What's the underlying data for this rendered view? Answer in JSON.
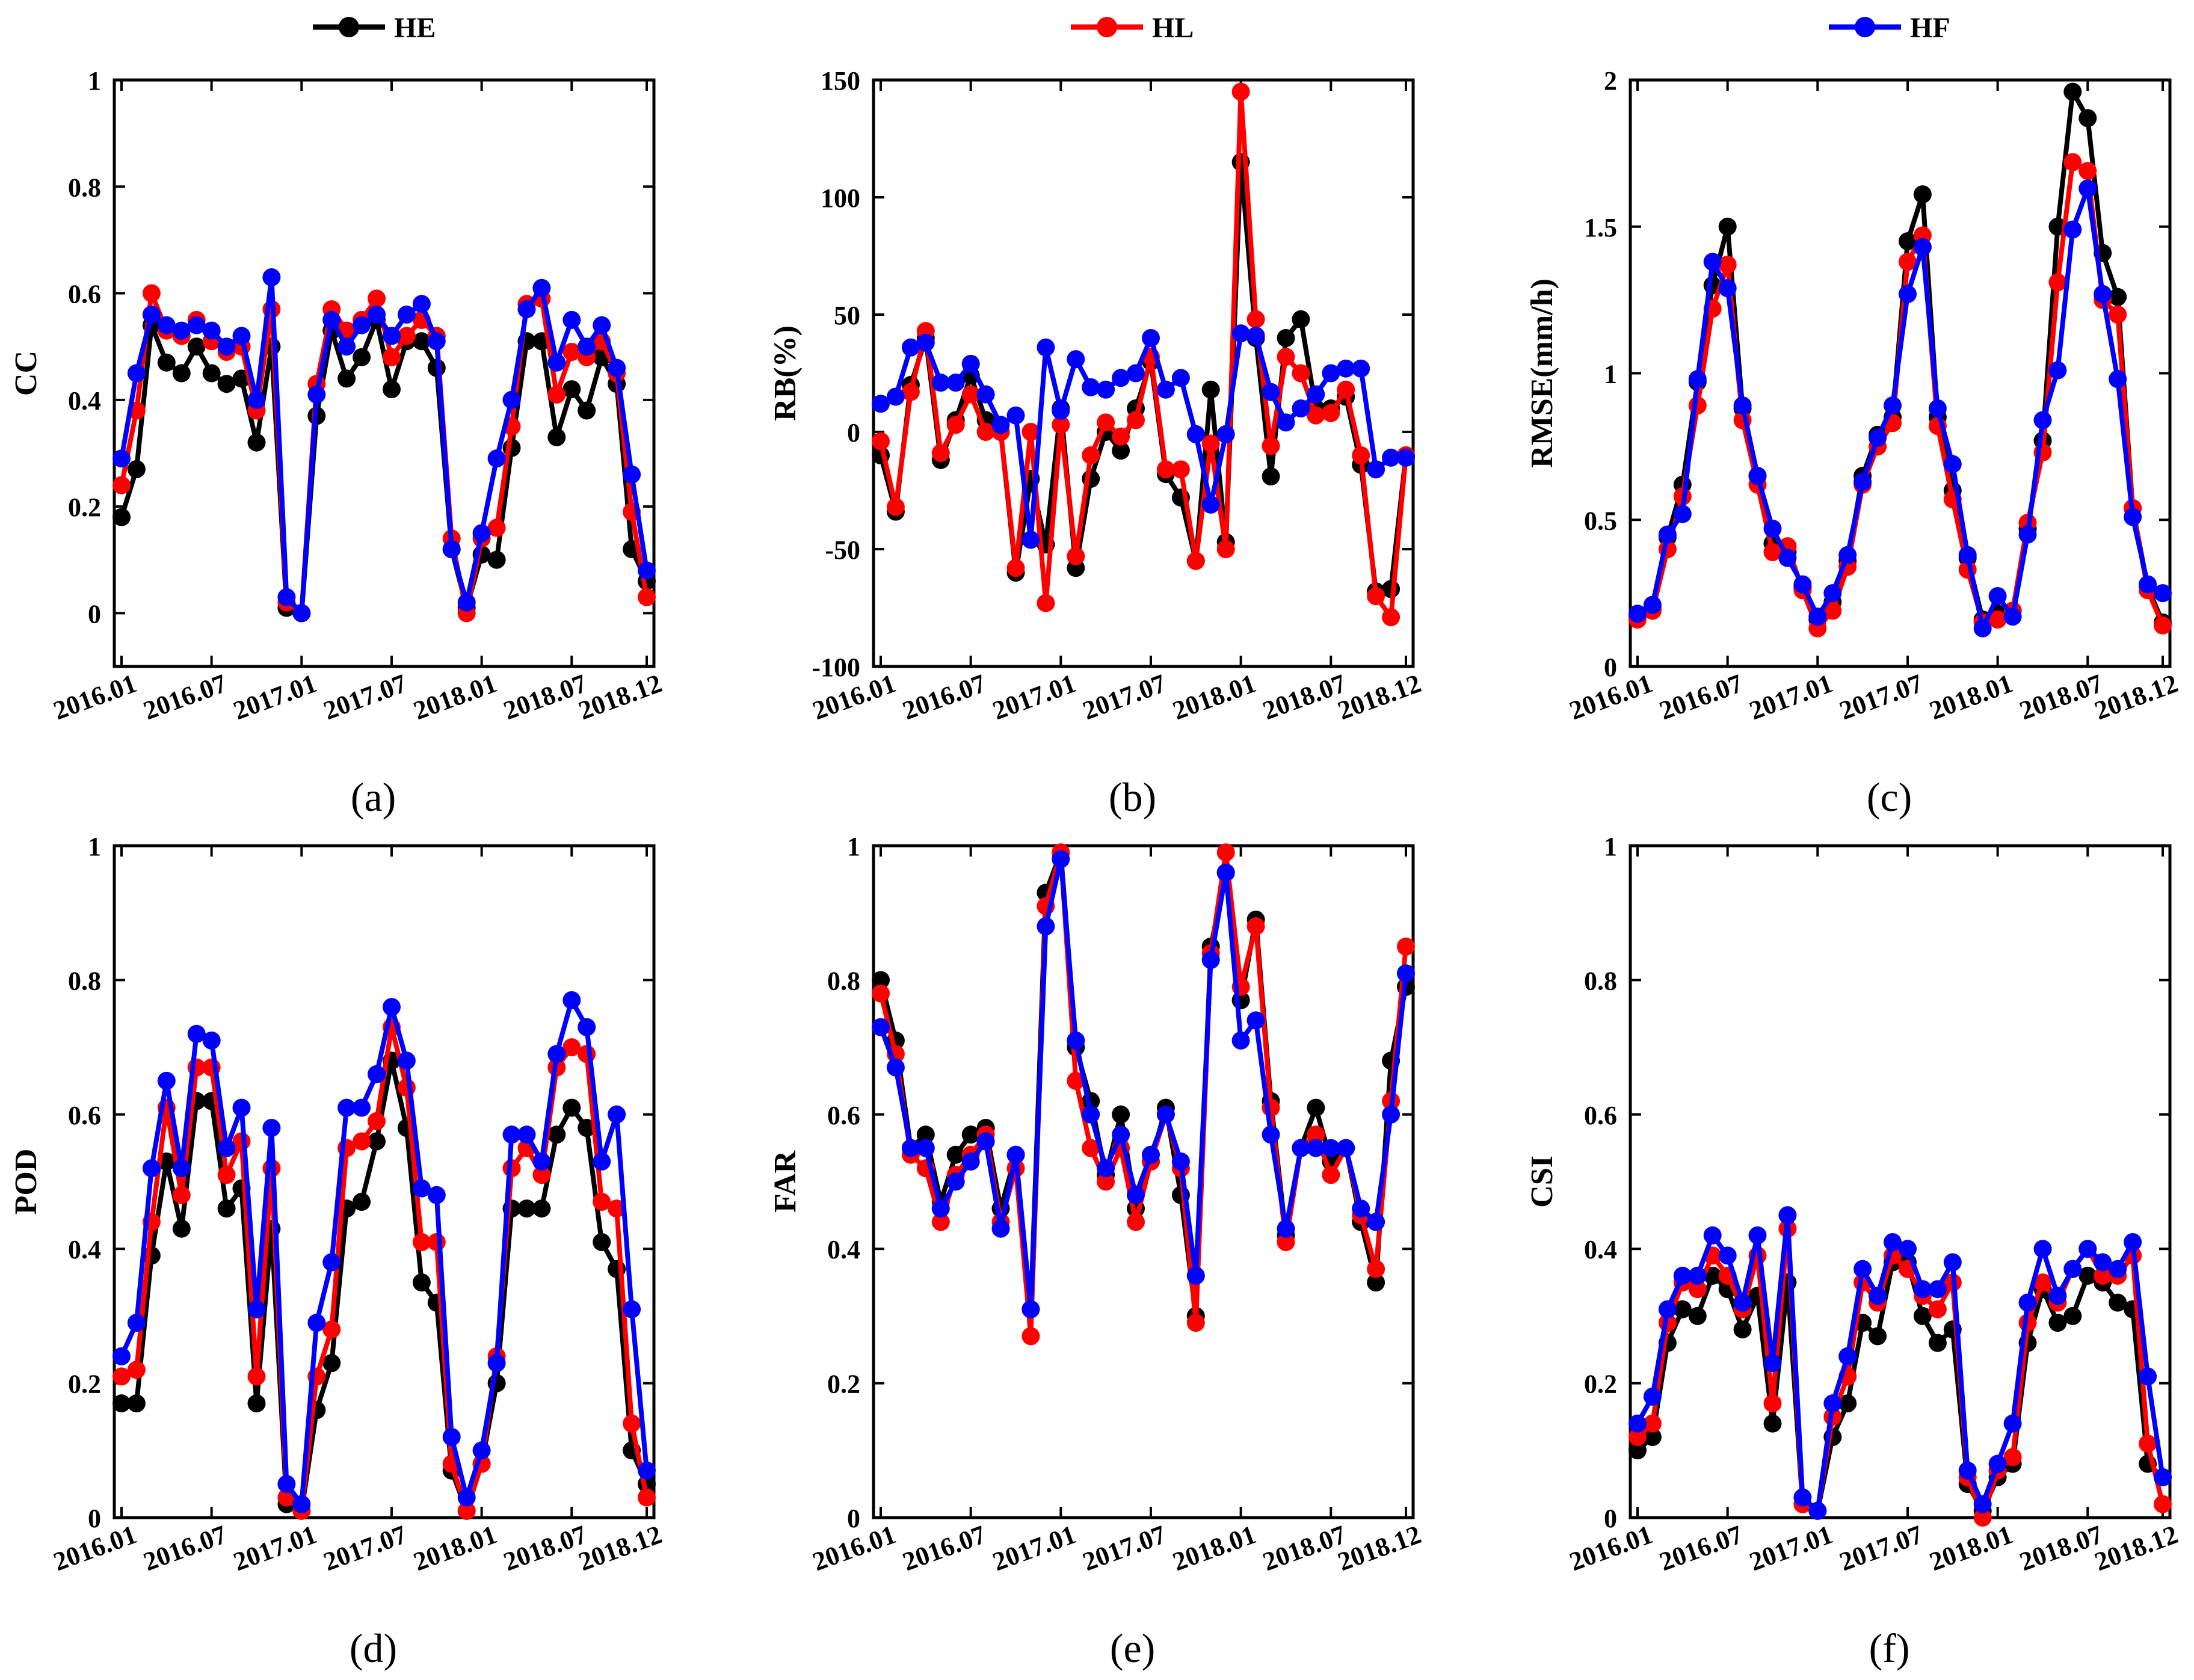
{
  "legend": [
    {
      "name": "HE",
      "color": "#000000"
    },
    {
      "name": "HL",
      "color": "#ff0000"
    },
    {
      "name": "HF",
      "color": "#0000ff"
    }
  ],
  "chart_data": [
    {
      "type": "line",
      "panel": "(a)",
      "ylabel": "CC",
      "ylim": [
        -0.1,
        1.0
      ],
      "yticks": [
        "0",
        "0.2",
        "0.4",
        "0.6",
        "0.8",
        "1"
      ],
      "ytick_values": [
        0,
        0.2,
        0.4,
        0.6,
        0.8,
        1
      ],
      "xticks": [
        "2016.01",
        "2016.07",
        "2017.01",
        "2017.07",
        "2018.01",
        "2018.07",
        "2018.12"
      ],
      "xtick_index": [
        0,
        6,
        12,
        18,
        24,
        30,
        35
      ],
      "series": [
        {
          "name": "HE",
          "values": [
            0.18,
            0.27,
            0.54,
            0.47,
            0.45,
            0.5,
            0.45,
            0.43,
            0.44,
            0.32,
            0.5,
            0.01,
            0.0,
            0.37,
            0.53,
            0.44,
            0.48,
            0.55,
            0.42,
            0.51,
            0.51,
            0.46,
            0.12,
            0.01,
            0.11,
            0.1,
            0.31,
            0.51,
            0.51,
            0.33,
            0.42,
            0.38,
            0.48,
            0.43,
            0.12,
            0.06
          ]
        },
        {
          "name": "HL",
          "values": [
            0.24,
            0.38,
            0.6,
            0.53,
            0.52,
            0.55,
            0.51,
            0.49,
            0.5,
            0.38,
            0.57,
            0.02,
            0.0,
            0.43,
            0.57,
            0.53,
            0.55,
            0.59,
            0.48,
            0.52,
            0.55,
            0.52,
            0.14,
            0.0,
            0.14,
            0.16,
            0.35,
            0.58,
            0.59,
            0.41,
            0.49,
            0.48,
            0.51,
            0.45,
            0.19,
            0.03
          ]
        },
        {
          "name": "HF",
          "values": [
            0.29,
            0.45,
            0.56,
            0.54,
            0.53,
            0.54,
            0.53,
            0.5,
            0.52,
            0.4,
            0.63,
            0.03,
            0.0,
            0.41,
            0.55,
            0.5,
            0.54,
            0.56,
            0.52,
            0.56,
            0.58,
            0.51,
            0.12,
            0.02,
            0.15,
            0.29,
            0.4,
            0.57,
            0.61,
            0.47,
            0.55,
            0.5,
            0.54,
            0.46,
            0.26,
            0.08
          ]
        }
      ]
    },
    {
      "type": "line",
      "panel": "(b)",
      "ylabel": "RB(%)",
      "ylim": [
        -100,
        150
      ],
      "yticks": [
        "-100",
        "-50",
        "0",
        "50",
        "100",
        "150"
      ],
      "ytick_values": [
        -100,
        -50,
        0,
        50,
        100,
        150
      ],
      "xticks": [
        "2016.01",
        "2016.07",
        "2017.01",
        "2017.07",
        "2018.01",
        "2018.07",
        "2018.12"
      ],
      "xtick_index": [
        0,
        6,
        12,
        18,
        24,
        30,
        35
      ],
      "series": [
        {
          "name": "HE",
          "values": [
            -10,
            -34,
            20,
            40,
            -12,
            5,
            24,
            5,
            0,
            -60,
            -20,
            -48,
            10,
            -58,
            -20,
            0,
            -8,
            10,
            30,
            -18,
            -28,
            -55,
            18,
            -47,
            115,
            40,
            -19,
            40,
            48,
            10,
            10,
            15,
            -14,
            -68,
            -67,
            -10
          ]
        },
        {
          "name": "HL",
          "values": [
            -4,
            -32,
            17,
            43,
            -9,
            3,
            16,
            0,
            0,
            -58,
            0,
            -73,
            3,
            -53,
            -10,
            4,
            -2,
            5,
            32,
            -16,
            -16,
            -55,
            -5,
            -50,
            145,
            48,
            -6,
            32,
            25,
            7,
            8,
            18,
            -10,
            -70,
            -79,
            -10
          ]
        },
        {
          "name": "HF",
          "values": [
            12,
            15,
            36,
            38,
            21,
            21,
            29,
            16,
            3,
            7,
            -46,
            36,
            9,
            31,
            19,
            18,
            23,
            25,
            40,
            18,
            23,
            -1,
            -31,
            -1,
            42,
            41,
            17,
            4,
            10,
            16,
            25,
            27,
            27,
            -16,
            -11,
            -11
          ]
        }
      ]
    },
    {
      "type": "line",
      "panel": "(c)",
      "ylabel": "RMSE(mm/h)",
      "ylim": [
        0,
        2
      ],
      "yticks": [
        "0",
        "0.5",
        "1",
        "1.5",
        "2"
      ],
      "ytick_values": [
        0,
        0.5,
        1,
        1.5,
        2
      ],
      "xticks": [
        "2016.01",
        "2016.07",
        "2017.01",
        "2017.07",
        "2018.01",
        "2018.07",
        "2018.12"
      ],
      "xtick_index": [
        0,
        6,
        12,
        18,
        24,
        30,
        35
      ],
      "series": [
        {
          "name": "HE",
          "values": [
            0.17,
            0.2,
            0.44,
            0.62,
            0.97,
            1.3,
            1.5,
            0.88,
            0.65,
            0.42,
            0.39,
            0.27,
            0.16,
            0.22,
            0.36,
            0.65,
            0.79,
            0.85,
            1.45,
            1.61,
            0.85,
            0.6,
            0.37,
            0.16,
            0.18,
            0.19,
            0.47,
            0.77,
            1.5,
            1.96,
            1.87,
            1.41,
            1.26,
            0.54,
            0.27,
            0.15
          ]
        },
        {
          "name": "HL",
          "values": [
            0.16,
            0.19,
            0.4,
            0.58,
            0.89,
            1.22,
            1.37,
            0.84,
            0.62,
            0.39,
            0.41,
            0.26,
            0.13,
            0.19,
            0.34,
            0.62,
            0.75,
            0.83,
            1.38,
            1.47,
            0.82,
            0.57,
            0.33,
            0.15,
            0.16,
            0.19,
            0.49,
            0.73,
            1.31,
            1.72,
            1.69,
            1.25,
            1.2,
            0.54,
            0.26,
            0.14
          ]
        },
        {
          "name": "HF",
          "values": [
            0.18,
            0.21,
            0.45,
            0.52,
            0.98,
            1.38,
            1.29,
            0.89,
            0.65,
            0.47,
            0.37,
            0.28,
            0.17,
            0.25,
            0.38,
            0.63,
            0.78,
            0.89,
            1.27,
            1.43,
            0.88,
            0.69,
            0.38,
            0.13,
            0.24,
            0.17,
            0.45,
            0.84,
            1.01,
            1.49,
            1.63,
            1.27,
            0.98,
            0.51,
            0.28,
            0.25
          ]
        }
      ]
    },
    {
      "type": "line",
      "panel": "(d)",
      "ylabel": "POD",
      "ylim": [
        0,
        1
      ],
      "yticks": [
        "0",
        "0.2",
        "0.4",
        "0.6",
        "0.8",
        "1"
      ],
      "ytick_values": [
        0,
        0.2,
        0.4,
        0.6,
        0.8,
        1
      ],
      "xticks": [
        "2016.01",
        "2016.07",
        "2017.01",
        "2017.07",
        "2018.01",
        "2018.07",
        "2018.12"
      ],
      "xtick_index": [
        0,
        6,
        12,
        18,
        24,
        30,
        35
      ],
      "series": [
        {
          "name": "HE",
          "values": [
            0.17,
            0.17,
            0.39,
            0.53,
            0.43,
            0.62,
            0.62,
            0.46,
            0.49,
            0.17,
            0.43,
            0.02,
            0.01,
            0.16,
            0.23,
            0.46,
            0.47,
            0.56,
            0.68,
            0.58,
            0.35,
            0.32,
            0.07,
            0.01,
            0.08,
            0.2,
            0.46,
            0.46,
            0.46,
            0.57,
            0.61,
            0.58,
            0.41,
            0.37,
            0.1,
            0.05
          ]
        },
        {
          "name": "HL",
          "values": [
            0.21,
            0.22,
            0.44,
            0.61,
            0.48,
            0.67,
            0.67,
            0.51,
            0.56,
            0.21,
            0.52,
            0.03,
            0.01,
            0.21,
            0.28,
            0.55,
            0.56,
            0.59,
            0.73,
            0.64,
            0.41,
            0.41,
            0.08,
            0.01,
            0.08,
            0.24,
            0.52,
            0.55,
            0.51,
            0.67,
            0.7,
            0.69,
            0.47,
            0.46,
            0.14,
            0.03
          ]
        },
        {
          "name": "HF",
          "values": [
            0.24,
            0.29,
            0.52,
            0.65,
            0.52,
            0.72,
            0.71,
            0.55,
            0.61,
            0.31,
            0.58,
            0.05,
            0.02,
            0.29,
            0.38,
            0.61,
            0.61,
            0.66,
            0.76,
            0.68,
            0.49,
            0.48,
            0.12,
            0.03,
            0.1,
            0.23,
            0.57,
            0.57,
            0.53,
            0.69,
            0.77,
            0.73,
            0.53,
            0.6,
            0.31,
            0.07
          ]
        }
      ]
    },
    {
      "type": "line",
      "panel": "(e)",
      "ylabel": "FAR",
      "ylim": [
        0,
        1
      ],
      "yticks": [
        "0",
        "0.2",
        "0.4",
        "0.6",
        "0.8",
        "1"
      ],
      "ytick_values": [
        0,
        0.2,
        0.4,
        0.6,
        0.8,
        1
      ],
      "xticks": [
        "2016.01",
        "2016.07",
        "2017.01",
        "2017.07",
        "2018.01",
        "2018.07",
        "2018.12"
      ],
      "xtick_index": [
        0,
        6,
        12,
        18,
        24,
        30,
        35
      ],
      "series": [
        {
          "name": "HE",
          "values": [
            0.8,
            0.71,
            0.55,
            0.57,
            0.47,
            0.54,
            0.57,
            0.58,
            0.46,
            0.54,
            0.31,
            0.93,
            0.99,
            0.7,
            0.62,
            0.51,
            0.6,
            0.46,
            0.53,
            0.61,
            0.48,
            0.3,
            0.85,
            0.96,
            0.77,
            0.89,
            0.62,
            0.42,
            0.55,
            0.61,
            0.53,
            0.55,
            0.44,
            0.35,
            0.68,
            0.79
          ]
        },
        {
          "name": "HL",
          "values": [
            0.78,
            0.69,
            0.54,
            0.52,
            0.44,
            0.51,
            0.54,
            0.57,
            0.44,
            0.52,
            0.27,
            0.91,
            0.99,
            0.65,
            0.55,
            0.5,
            0.55,
            0.44,
            0.53,
            0.6,
            0.52,
            0.29,
            0.84,
            0.99,
            0.79,
            0.88,
            0.61,
            0.41,
            0.55,
            0.57,
            0.51,
            0.55,
            0.45,
            0.37,
            0.62,
            0.85
          ]
        },
        {
          "name": "HF",
          "values": [
            0.73,
            0.67,
            0.55,
            0.55,
            0.46,
            0.5,
            0.53,
            0.56,
            0.43,
            0.54,
            0.31,
            0.88,
            0.98,
            0.71,
            0.6,
            0.52,
            0.57,
            0.48,
            0.54,
            0.6,
            0.53,
            0.36,
            0.83,
            0.96,
            0.71,
            0.74,
            0.57,
            0.43,
            0.55,
            0.55,
            0.55,
            0.55,
            0.46,
            0.44,
            0.6,
            0.81
          ]
        }
      ]
    },
    {
      "type": "line",
      "panel": "(f)",
      "ylabel": "CSI",
      "ylim": [
        0,
        1
      ],
      "yticks": [
        "0",
        "0.2",
        "0.4",
        "0.6",
        "0.8",
        "1"
      ],
      "ytick_values": [
        0,
        0.2,
        0.4,
        0.6,
        0.8,
        1
      ],
      "xticks": [
        "2016.01",
        "2016.07",
        "2017.01",
        "2017.07",
        "2018.01",
        "2018.07",
        "2018.12"
      ],
      "xtick_index": [
        0,
        6,
        12,
        18,
        24,
        30,
        35
      ],
      "series": [
        {
          "name": "HE",
          "values": [
            0.1,
            0.12,
            0.26,
            0.31,
            0.3,
            0.36,
            0.34,
            0.28,
            0.33,
            0.14,
            0.35,
            0.02,
            0.01,
            0.12,
            0.17,
            0.29,
            0.27,
            0.38,
            0.38,
            0.3,
            0.26,
            0.28,
            0.05,
            0.01,
            0.06,
            0.08,
            0.26,
            0.34,
            0.29,
            0.3,
            0.36,
            0.35,
            0.32,
            0.31,
            0.08,
            0.06
          ]
        },
        {
          "name": "HL",
          "values": [
            0.12,
            0.14,
            0.29,
            0.35,
            0.34,
            0.39,
            0.36,
            0.31,
            0.39,
            0.17,
            0.43,
            0.02,
            0.01,
            0.15,
            0.21,
            0.35,
            0.32,
            0.39,
            0.37,
            0.33,
            0.31,
            0.35,
            0.06,
            0.0,
            0.07,
            0.09,
            0.29,
            0.35,
            0.32,
            0.37,
            0.4,
            0.36,
            0.36,
            0.39,
            0.11,
            0.02
          ]
        },
        {
          "name": "HF",
          "values": [
            0.14,
            0.18,
            0.31,
            0.36,
            0.36,
            0.42,
            0.39,
            0.32,
            0.42,
            0.23,
            0.45,
            0.03,
            0.01,
            0.17,
            0.24,
            0.37,
            0.33,
            0.41,
            0.4,
            0.34,
            0.34,
            0.38,
            0.07,
            0.02,
            0.08,
            0.14,
            0.32,
            0.4,
            0.33,
            0.37,
            0.4,
            0.38,
            0.37,
            0.41,
            0.21,
            0.06
          ]
        }
      ]
    }
  ]
}
